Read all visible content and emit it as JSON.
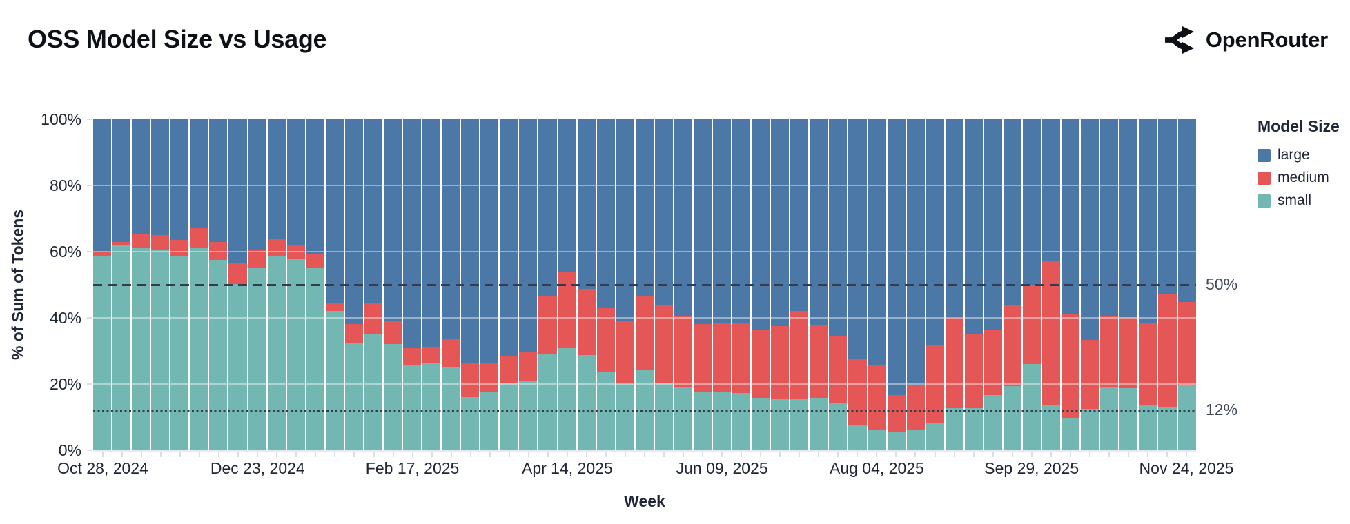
{
  "page": {
    "title": "OSS Model Size vs Usage"
  },
  "brand": {
    "name": "OpenRouter",
    "icon": "openrouter-split-arrows-icon",
    "color": "#0d1117"
  },
  "chart_data": {
    "type": "bar",
    "stacked": true,
    "normalized": true,
    "title": "OSS Model Size vs Usage",
    "xlabel": "Week",
    "ylabel": "% of Sum of Tokens",
    "ylim": [
      0,
      100
    ],
    "grid": true,
    "bar_count": 57,
    "y_tick_labels": [
      "0%",
      "20%",
      "40%",
      "60%",
      "80%",
      "100%"
    ],
    "y_tick_values": [
      0,
      20,
      40,
      60,
      80,
      100
    ],
    "x_tick_labels": [
      "Oct 28, 2024",
      "Dec 23, 2024",
      "Feb 17, 2025",
      "Apr 14, 2025",
      "Jun 09, 2025",
      "Aug 04, 2025",
      "Sep 29, 2025",
      "Nov 24, 2025"
    ],
    "x_label_week_indices": [
      0,
      8,
      16,
      24,
      32,
      40,
      48,
      56
    ],
    "legend": {
      "title": "Model Size",
      "position": "right",
      "entries": [
        {
          "label": "large",
          "color": "#4c78a8"
        },
        {
          "label": "medium",
          "color": "#e45756"
        },
        {
          "label": "small",
          "color": "#72b7b2"
        }
      ]
    },
    "reference_lines": [
      {
        "value": 50,
        "label": "50%",
        "style": "dashed"
      },
      {
        "value": 12,
        "label": "12%",
        "style": "dotted"
      }
    ],
    "series": [
      {
        "name": "small",
        "color": "#72b7b2",
        "values": [
          58.5,
          62,
          61,
          60.5,
          58.5,
          61,
          57.5,
          50.3,
          55,
          58.5,
          58,
          55,
          42,
          32.5,
          35,
          32,
          25.6,
          26.5,
          25.2,
          16,
          17.6,
          20.4,
          21.1,
          29,
          30.8,
          28.7,
          23.5,
          20.1,
          24.2,
          20.5,
          19,
          17.5,
          17.5,
          17.3,
          15.9,
          15.7,
          15.6,
          15.9,
          14.2,
          7.6,
          6.2,
          5.5,
          6.2,
          8.3,
          12.8,
          12.8,
          16.6,
          19.4,
          26,
          13.7,
          9.8,
          12.4,
          19.2,
          18.7,
          13.6,
          12.9,
          19.8
        ]
      },
      {
        "name": "medium",
        "color": "#e45756",
        "values": [
          1.2,
          1,
          4.5,
          4.5,
          5,
          6.2,
          5.5,
          6.2,
          5.5,
          5.5,
          4,
          4.3,
          2.6,
          5.7,
          9.6,
          7.2,
          5.2,
          4.8,
          8.3,
          10.5,
          8.7,
          8,
          8.6,
          17.7,
          23,
          20.1,
          19.4,
          18.8,
          22.3,
          23.3,
          21.5,
          20.7,
          21,
          21.1,
          20.4,
          21.8,
          26.4,
          21.9,
          20.2,
          19.8,
          19.4,
          11.1,
          13.4,
          23.5,
          27.1,
          22.5,
          19.8,
          24.5,
          24,
          43.5,
          31.2,
          21,
          21.4,
          21.6,
          24.9,
          34.1,
          25
        ]
      },
      {
        "name": "large",
        "color": "#4c78a8",
        "values": [
          40.3,
          37,
          34.5,
          35,
          36.5,
          32.8,
          37,
          43.5,
          39.5,
          36,
          38,
          40.7,
          55.4,
          61.8,
          55.4,
          60.8,
          69.2,
          68.7,
          66.5,
          73.5,
          73.7,
          71.6,
          70.3,
          53.3,
          46.2,
          51.2,
          57.1,
          61.1,
          53.5,
          56.2,
          59.5,
          61.8,
          61.5,
          61.6,
          63.7,
          62.5,
          58,
          62.2,
          65.6,
          72.6,
          74.4,
          83.4,
          80.4,
          68.2,
          60.1,
          64.7,
          63.6,
          56.1,
          50,
          42.8,
          59,
          66.6,
          59.4,
          59.7,
          61.5,
          53,
          55.2
        ]
      }
    ]
  },
  "colors": {
    "large": "#4c78a8",
    "medium": "#e45756",
    "small": "#72b7b2",
    "title_text": "#0d1117",
    "axis_text": "#202636",
    "reference_line": "#343c4d",
    "reference_label": "#414959",
    "grid_light": "#e7eaf3",
    "tick_mark": "#d9deea",
    "background": "#ffffff"
  }
}
